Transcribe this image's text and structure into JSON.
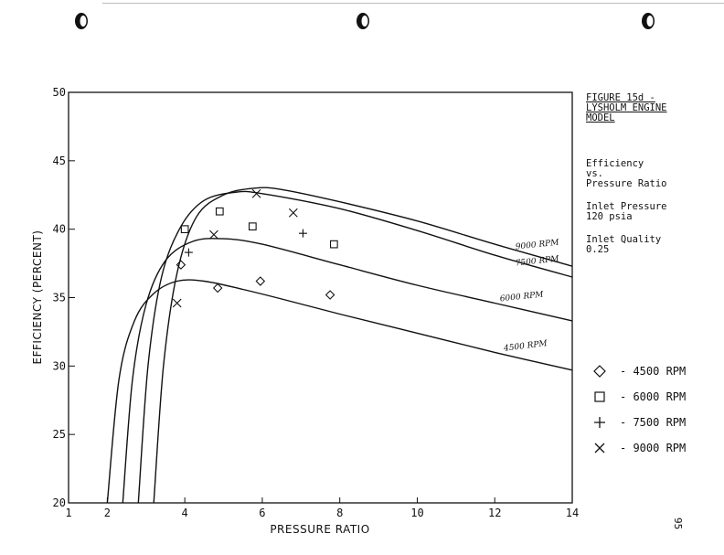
{
  "figure": {
    "title": "FIGURE 15d -\nLYSHOLM ENGINE\nMODEL",
    "caption": "Efficiency\nvs.\nPressure Ratio",
    "inlet_pressure": "Inlet Pressure\n120 psia",
    "inlet_quality": "Inlet Quality\n0.25"
  },
  "page_number": "95",
  "chart_data": {
    "type": "line",
    "xlabel": "PRESSURE RATIO",
    "ylabel": "EFFICIENCY (PERCENT)",
    "xlim": [
      1,
      14
    ],
    "ylim": [
      20,
      50
    ],
    "x_ticks": [
      1,
      2,
      4,
      6,
      8,
      10,
      12,
      14
    ],
    "y_ticks": [
      20,
      25,
      30,
      35,
      40,
      45,
      50
    ],
    "grid": false,
    "series": [
      {
        "name": "4500 RPM",
        "curve_label": "4500 RPM",
        "points": [
          [
            2.0,
            20.0
          ],
          [
            2.3,
            29.0
          ],
          [
            2.7,
            33.3
          ],
          [
            3.2,
            35.3
          ],
          [
            3.8,
            36.2
          ],
          [
            4.5,
            36.2
          ],
          [
            5.5,
            35.6
          ],
          [
            6.5,
            34.9
          ],
          [
            8.0,
            33.8
          ],
          [
            10.0,
            32.4
          ],
          [
            12.0,
            31.0
          ],
          [
            14.0,
            29.7
          ]
        ]
      },
      {
        "name": "6000 RPM",
        "curve_label": "6000 RPM",
        "points": [
          [
            2.4,
            20.0
          ],
          [
            2.65,
            29.0
          ],
          [
            3.0,
            34.5
          ],
          [
            3.5,
            37.7
          ],
          [
            4.2,
            39.1
          ],
          [
            5.0,
            39.3
          ],
          [
            6.0,
            38.9
          ],
          [
            8.0,
            37.4
          ],
          [
            10.0,
            35.9
          ],
          [
            12.0,
            34.6
          ],
          [
            14.0,
            33.3
          ]
        ]
      },
      {
        "name": "7500 RPM",
        "curve_label": "7500 RPM",
        "points": [
          [
            2.8,
            20.0
          ],
          [
            3.05,
            30.0
          ],
          [
            3.4,
            36.5
          ],
          [
            3.9,
            40.2
          ],
          [
            4.5,
            42.1
          ],
          [
            5.3,
            42.7
          ],
          [
            6.0,
            42.6
          ],
          [
            8.0,
            41.5
          ],
          [
            10.0,
            39.9
          ],
          [
            12.0,
            38.1
          ],
          [
            14.0,
            36.5
          ]
        ]
      },
      {
        "name": "9000 RPM",
        "curve_label": "9000 RPM",
        "points": [
          [
            3.2,
            20.0
          ],
          [
            3.45,
            30.0
          ],
          [
            3.8,
            36.8
          ],
          [
            4.3,
            40.9
          ],
          [
            5.0,
            42.5
          ],
          [
            5.8,
            43.0
          ],
          [
            6.5,
            42.9
          ],
          [
            8.0,
            42.0
          ],
          [
            10.0,
            40.6
          ],
          [
            12.0,
            38.9
          ],
          [
            14.0,
            37.3
          ]
        ]
      }
    ],
    "measured": [
      {
        "name": "4500 RPM",
        "marker": "diamond",
        "points": [
          [
            3.9,
            37.4
          ],
          [
            4.85,
            35.7
          ],
          [
            5.95,
            36.2
          ],
          [
            7.75,
            35.2
          ]
        ]
      },
      {
        "name": "6000 RPM",
        "marker": "square",
        "points": [
          [
            4.0,
            40.0
          ],
          [
            4.9,
            41.3
          ],
          [
            5.75,
            40.2
          ],
          [
            7.85,
            38.9
          ]
        ]
      },
      {
        "name": "7500 RPM",
        "marker": "plus",
        "points": [
          [
            4.1,
            38.3
          ],
          [
            7.05,
            39.7
          ]
        ]
      },
      {
        "name": "9000 RPM",
        "marker": "x",
        "points": [
          [
            3.8,
            34.6
          ],
          [
            4.75,
            39.6
          ],
          [
            5.85,
            42.6
          ],
          [
            6.8,
            41.2
          ]
        ]
      }
    ]
  },
  "legend": [
    {
      "marker": "diamond",
      "label": "- 4500 RPM"
    },
    {
      "marker": "square",
      "label": "- 6000 RPM"
    },
    {
      "marker": "plus",
      "label": "- 7500 RPM"
    },
    {
      "marker": "x",
      "label": "- 9000 RPM"
    }
  ]
}
